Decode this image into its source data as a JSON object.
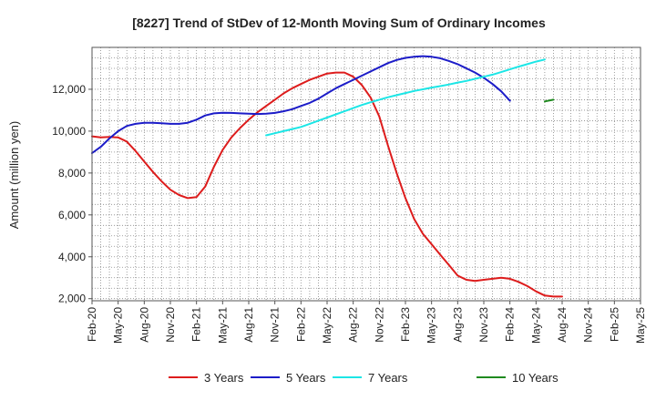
{
  "chart_data": {
    "type": "line",
    "title": "[8227]  Trend of StDev of 12-Month Moving Sum of Ordinary Incomes",
    "xlabel": "",
    "ylabel": "Amount (million yen)",
    "ylim": [
      1900,
      14000
    ],
    "yticks": [
      2000,
      4000,
      6000,
      8000,
      10000,
      12000
    ],
    "ytick_labels": [
      "2,000",
      "4,000",
      "6,000",
      "8,000",
      "10,000",
      "12,000"
    ],
    "xlim": [
      0,
      63
    ],
    "xticks": [
      0,
      3,
      6,
      9,
      12,
      15,
      18,
      21,
      24,
      27,
      30,
      33,
      36,
      39,
      42,
      45,
      48,
      51,
      54,
      57,
      60,
      63
    ],
    "xtick_labels": [
      "Feb-20",
      "May-20",
      "Aug-20",
      "Nov-20",
      "Feb-21",
      "May-21",
      "Aug-21",
      "Nov-21",
      "Feb-22",
      "May-22",
      "Aug-22",
      "Nov-22",
      "Feb-23",
      "May-23",
      "Aug-23",
      "Nov-23",
      "Feb-24",
      "May-24",
      "Aug-24",
      "Nov-24",
      "Feb-25",
      "May-25"
    ],
    "grid": true,
    "legend_position": "bottom",
    "series": [
      {
        "name": "3 Years",
        "color": "#dd1c1c",
        "x": [
          0,
          1,
          2,
          3,
          4,
          5,
          6,
          7,
          8,
          9,
          10,
          11,
          12,
          13,
          14,
          15,
          16,
          17,
          18,
          19,
          20,
          21,
          22,
          23,
          24,
          25,
          26,
          27,
          28,
          29,
          30,
          31,
          32,
          33,
          34,
          35,
          36,
          37,
          38,
          39,
          40,
          41,
          42,
          43,
          44,
          45,
          46,
          47,
          48,
          49,
          50,
          51,
          52,
          53,
          54,
          55,
          56,
          57,
          58,
          59,
          60
        ],
        "y": [
          9750,
          9700,
          9720,
          9700,
          9500,
          9050,
          8550,
          8050,
          7600,
          7200,
          6950,
          6800,
          6850,
          7350,
          8300,
          9100,
          9700,
          10150,
          10550,
          10900,
          11200,
          11500,
          11800,
          12050,
          12250,
          12450,
          12600,
          12750,
          12800,
          12800,
          12600,
          12200,
          11600,
          10700,
          9300,
          8000,
          6800,
          5800,
          5100,
          4600,
          4100,
          3600,
          3100,
          2900,
          2850,
          2900,
          2950,
          3000,
          2950,
          2800,
          2600,
          2350,
          2150,
          2100,
          2100,
          null,
          null,
          null,
          null,
          null,
          null
        ]
      },
      {
        "name": "5 Years",
        "color": "#1c1cc8",
        "x": [
          0,
          1,
          2,
          3,
          4,
          5,
          6,
          7,
          8,
          9,
          10,
          11,
          12,
          13,
          14,
          15,
          16,
          17,
          18,
          19,
          20,
          21,
          22,
          23,
          24,
          25,
          26,
          27,
          28,
          29,
          30,
          31,
          32,
          33,
          34,
          35,
          36,
          37,
          38,
          39,
          40,
          41,
          42,
          43,
          44,
          45,
          46,
          47,
          48,
          49,
          50,
          51,
          52,
          53,
          54
        ],
        "y": [
          8950,
          9250,
          9650,
          10000,
          10250,
          10350,
          10400,
          10400,
          10380,
          10350,
          10350,
          10400,
          10550,
          10750,
          10850,
          10880,
          10870,
          10850,
          10830,
          10820,
          10830,
          10870,
          10950,
          11050,
          11200,
          11350,
          11550,
          11800,
          12050,
          12250,
          12450,
          12650,
          12850,
          13050,
          13250,
          13400,
          13500,
          13550,
          13580,
          13550,
          13480,
          13350,
          13200,
          13000,
          12800,
          12550,
          12250,
          11900,
          11450,
          null,
          null,
          null,
          null,
          null,
          null
        ]
      },
      {
        "name": "7 Years",
        "color": "#1ce6e6",
        "x": [
          20,
          21,
          22,
          23,
          24,
          25,
          26,
          27,
          28,
          29,
          30,
          31,
          32,
          33,
          34,
          35,
          36,
          37,
          38,
          39,
          40,
          41,
          42,
          43,
          44,
          45,
          46,
          47,
          48,
          49,
          50,
          51,
          52,
          53,
          54
        ],
        "y": [
          9800,
          9900,
          10000,
          10100,
          10200,
          10350,
          10500,
          10650,
          10800,
          10950,
          11100,
          11250,
          11380,
          11500,
          11620,
          11720,
          11820,
          11920,
          12000,
          12080,
          12150,
          12230,
          12320,
          12400,
          12500,
          12600,
          12700,
          12820,
          12950,
          13080,
          13200,
          13320,
          13420,
          null,
          null
        ]
      },
      {
        "name": "10 Years",
        "color": "#1f8a1f",
        "x": [
          52,
          53
        ],
        "y": [
          11420,
          11500
        ]
      }
    ]
  }
}
